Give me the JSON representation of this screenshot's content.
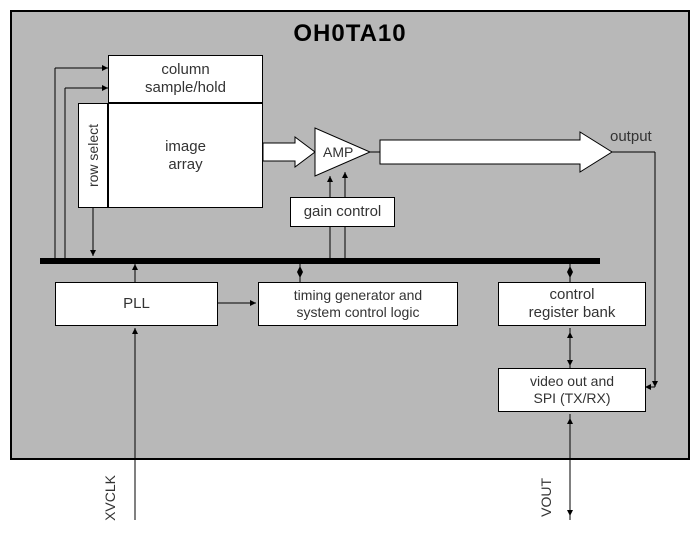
{
  "title": "OH0TA10",
  "blocks": {
    "column_sample_hold": "column\nsample/hold",
    "row_select": "row select",
    "image_array": "image\narray",
    "amp": "AMP",
    "gain_control": "gain control",
    "pll": "PLL",
    "timing": "timing generator and\nsystem control logic",
    "ctrl_reg": "control\nregister bank",
    "video_out": "video out and\nSPI (TX/RX)"
  },
  "labels": {
    "output": "output",
    "xvclk": "XVCLK",
    "vout": "VOUT"
  },
  "style": {
    "chip_bg": "#b8b8b8",
    "box_bg": "#ffffff",
    "border": "#000000",
    "text": "#333333",
    "title_size": 24,
    "body_size": 15
  }
}
